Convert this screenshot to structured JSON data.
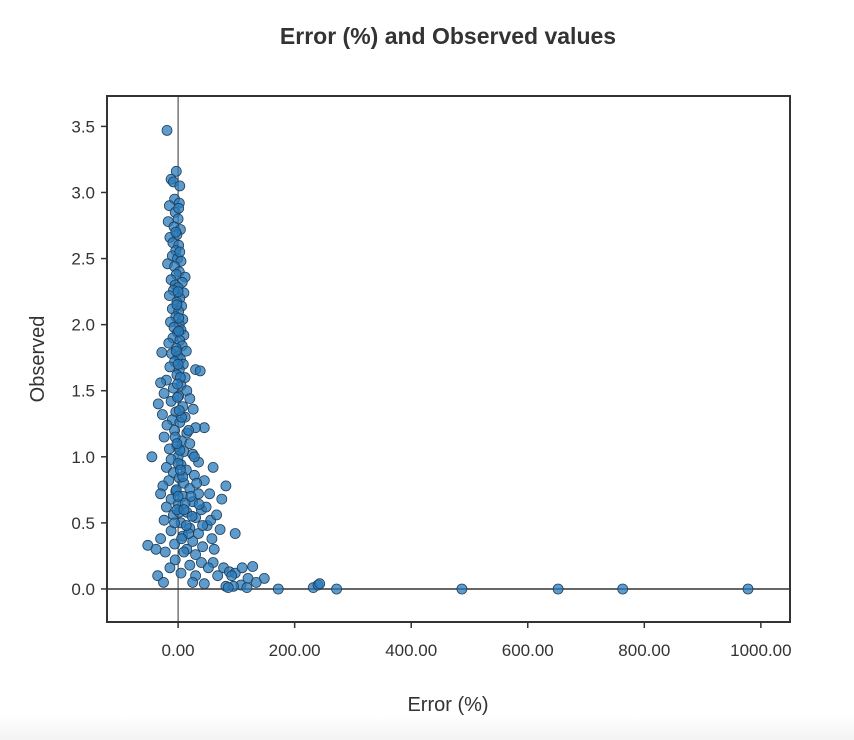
{
  "chart_data": {
    "type": "scatter",
    "title": "Error (%) and Observed values",
    "xlabel": "Error (%)",
    "ylabel": "Observed",
    "xlim": [
      -122,
      1050
    ],
    "ylim": [
      -0.25,
      3.73
    ],
    "xticks": [
      0,
      200,
      400,
      600,
      800,
      1000
    ],
    "xtick_labels": [
      "0.00",
      "200.00",
      "400.00",
      "600.00",
      "800.00",
      "1000.00"
    ],
    "yticks": [
      0,
      0.5,
      1,
      1.5,
      2,
      2.5,
      3,
      3.5
    ],
    "ytick_labels": [
      "0.0",
      "0.5",
      "1.0",
      "1.5",
      "2.0",
      "2.5",
      "3.0",
      "3.5"
    ],
    "grid": false,
    "reference_lines": {
      "x": 0,
      "y": 0
    },
    "colors": {
      "point_fill": "#2b7bba",
      "point_stroke": "#1f3f5c",
      "axis": "#333333"
    },
    "series": [
      {
        "points": [
          [
            -19,
            3.47
          ],
          [
            -3,
            3.16
          ],
          [
            -12,
            3.1
          ],
          [
            -8,
            3.08
          ],
          [
            3,
            3.05
          ],
          [
            -6,
            2.95
          ],
          [
            2,
            2.92
          ],
          [
            -15,
            2.9
          ],
          [
            -5,
            2.85
          ],
          [
            0,
            2.8
          ],
          [
            -17,
            2.78
          ],
          [
            -7,
            2.74
          ],
          [
            4,
            2.72
          ],
          [
            -2,
            2.68
          ],
          [
            -14,
            2.66
          ],
          [
            -9,
            2.62
          ],
          [
            1,
            2.6
          ],
          [
            -4,
            2.56
          ],
          [
            -10,
            2.52
          ],
          [
            -1,
            2.5
          ],
          [
            5,
            2.48
          ],
          [
            -18,
            2.46
          ],
          [
            -6,
            2.44
          ],
          [
            2,
            2.4
          ],
          [
            -3,
            2.38
          ],
          [
            12,
            2.36
          ],
          [
            -12,
            2.34
          ],
          [
            7,
            2.32
          ],
          [
            -5,
            2.3
          ],
          [
            0,
            2.28
          ],
          [
            -8,
            2.26
          ],
          [
            10,
            2.24
          ],
          [
            -15,
            2.22
          ],
          [
            3,
            2.2
          ],
          [
            -2,
            2.17
          ],
          [
            6,
            2.14
          ],
          [
            -10,
            2.12
          ],
          [
            1,
            2.1
          ],
          [
            -4,
            2.06
          ],
          [
            8,
            2.04
          ],
          [
            -13,
            2.02
          ],
          [
            2,
            2.0
          ],
          [
            -7,
            1.98
          ],
          [
            5,
            1.96
          ],
          [
            -1,
            1.94
          ],
          [
            10,
            1.92
          ],
          [
            -9,
            1.9
          ],
          [
            3,
            1.88
          ],
          [
            -16,
            1.86
          ],
          [
            7,
            1.84
          ],
          [
            -3,
            1.82
          ],
          [
            14,
            1.8
          ],
          [
            -28,
            1.79
          ],
          [
            -11,
            1.78
          ],
          [
            0,
            1.76
          ],
          [
            4,
            1.74
          ],
          [
            -6,
            1.72
          ],
          [
            9,
            1.7
          ],
          [
            -14,
            1.68
          ],
          [
            2,
            1.66
          ],
          [
            30,
            1.66
          ],
          [
            38,
            1.65
          ],
          [
            -2,
            1.62
          ],
          [
            12,
            1.6
          ],
          [
            -20,
            1.58
          ],
          [
            -30,
            1.56
          ],
          [
            5,
            1.54
          ],
          [
            -8,
            1.52
          ],
          [
            15,
            1.5
          ],
          [
            -24,
            1.48
          ],
          [
            1,
            1.46
          ],
          [
            20,
            1.44
          ],
          [
            -12,
            1.42
          ],
          [
            -34,
            1.4
          ],
          [
            8,
            1.38
          ],
          [
            26,
            1.36
          ],
          [
            -4,
            1.34
          ],
          [
            -27,
            1.32
          ],
          [
            12,
            1.3
          ],
          [
            -10,
            1.28
          ],
          [
            45,
            1.22
          ],
          [
            3,
            1.26
          ],
          [
            -19,
            1.24
          ],
          [
            30,
            1.22
          ],
          [
            -6,
            1.2
          ],
          [
            15,
            1.18
          ],
          [
            -24,
            1.15
          ],
          [
            6,
            1.12
          ],
          [
            20,
            1.1
          ],
          [
            -2,
            1.08
          ],
          [
            -15,
            1.06
          ],
          [
            10,
            1.04
          ],
          [
            -45,
            1.0
          ],
          [
            25,
            1.02
          ],
          [
            0,
            1.0
          ],
          [
            -12,
            0.98
          ],
          [
            35,
            0.96
          ],
          [
            5,
            0.94
          ],
          [
            -20,
            0.92
          ],
          [
            60,
            0.92
          ],
          [
            14,
            0.9
          ],
          [
            -8,
            0.88
          ],
          [
            28,
            0.86
          ],
          [
            2,
            0.84
          ],
          [
            -16,
            0.82
          ],
          [
            45,
            0.82
          ],
          [
            82,
            0.78
          ],
          [
            10,
            0.8
          ],
          [
            -26,
            0.78
          ],
          [
            20,
            0.76
          ],
          [
            -4,
            0.74
          ],
          [
            35,
            0.72
          ],
          [
            -30,
            0.72
          ],
          [
            54,
            0.72
          ],
          [
            8,
            0.7
          ],
          [
            -12,
            0.68
          ],
          [
            75,
            0.68
          ],
          [
            25,
            0.66
          ],
          [
            0,
            0.64
          ],
          [
            -20,
            0.62
          ],
          [
            40,
            0.6
          ],
          [
            15,
            0.58
          ],
          [
            -8,
            0.56
          ],
          [
            30,
            0.54
          ],
          [
            -24,
            0.52
          ],
          [
            5,
            0.5
          ],
          [
            50,
            0.48
          ],
          [
            20,
            0.46
          ],
          [
            -12,
            0.44
          ],
          [
            72,
            0.45
          ],
          [
            35,
            0.42
          ],
          [
            98,
            0.42
          ],
          [
            8,
            0.4
          ],
          [
            -30,
            0.38
          ],
          [
            58,
            0.38
          ],
          [
            25,
            0.36
          ],
          [
            -6,
            0.34
          ],
          [
            15,
            0.3
          ],
          [
            -52,
            0.33
          ],
          [
            42,
            0.32
          ],
          [
            -38,
            0.3
          ],
          [
            62,
            0.3
          ],
          [
            10,
            0.28
          ],
          [
            30,
            0.26
          ],
          [
            -22,
            0.28
          ],
          [
            -5,
            0.22
          ],
          [
            40,
            0.2
          ],
          [
            60,
            0.2
          ],
          [
            20,
            0.18
          ],
          [
            -14,
            0.16
          ],
          [
            52,
            0.16
          ],
          [
            78,
            0.16
          ],
          [
            88,
            0.13
          ],
          [
            98,
            0.12
          ],
          [
            110,
            0.16
          ],
          [
            128,
            0.17
          ],
          [
            -35,
            0.1
          ],
          [
            5,
            0.12
          ],
          [
            30,
            0.1
          ],
          [
            68,
            0.1
          ],
          [
            92,
            0.1
          ],
          [
            120,
            0.08
          ],
          [
            148,
            0.08
          ],
          [
            25,
            0.05
          ],
          [
            -25,
            0.05
          ],
          [
            45,
            0.04
          ],
          [
            108,
            0.03
          ],
          [
            134,
            0.05
          ],
          [
            82,
            0.02
          ],
          [
            95,
            0.02
          ],
          [
            86,
            0.01
          ],
          [
            118,
            0.01
          ],
          [
            172,
            0.0
          ],
          [
            232,
            0.01
          ],
          [
            240,
            0.03
          ],
          [
            243,
            0.04
          ],
          [
            272,
            0.0
          ],
          [
            487,
            0.0
          ],
          [
            652,
            0.0
          ],
          [
            763,
            0.0
          ],
          [
            978,
            0.0
          ],
          [
            1,
            1.95
          ],
          [
            -3,
            1.8
          ],
          [
            4,
            1.6
          ],
          [
            -1,
            1.45
          ],
          [
            6,
            1.3
          ],
          [
            -5,
            1.15
          ],
          [
            3,
            1.05
          ],
          [
            0,
            0.95
          ],
          [
            8,
            0.85
          ],
          [
            -3,
            0.75
          ],
          [
            12,
            0.65
          ],
          [
            2,
            0.58
          ],
          [
            -6,
            0.5
          ],
          [
            18,
            0.42
          ],
          [
            6,
            0.38
          ],
          [
            -2,
            0.6
          ],
          [
            0,
            0.7
          ],
          [
            4,
            0.9
          ],
          [
            -2,
            1.1
          ],
          [
            2,
            1.35
          ],
          [
            -1,
            1.55
          ],
          [
            0,
            1.7
          ],
          [
            1,
            2.05
          ],
          [
            -2,
            2.15
          ],
          [
            0,
            2.25
          ],
          [
            3,
            2.55
          ],
          [
            -4,
            2.7
          ],
          [
            1,
            2.88
          ],
          [
            22,
            0.7
          ],
          [
            32,
            0.8
          ],
          [
            48,
            0.62
          ],
          [
            56,
            0.52
          ],
          [
            66,
            0.56
          ],
          [
            42,
            0.48
          ],
          [
            28,
            1.0
          ],
          [
            18,
            1.2
          ],
          [
            24,
            0.55
          ],
          [
            14,
            0.48
          ],
          [
            10,
            0.6
          ],
          [
            36,
            0.64
          ]
        ]
      }
    ]
  }
}
